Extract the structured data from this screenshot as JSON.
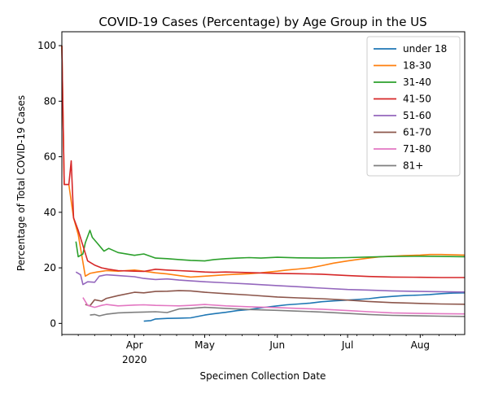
{
  "chart_data": {
    "type": "line",
    "title": "COVID-19 Cases (Percentage) by Age Group in the US",
    "xlabel": "Specimen Collection Date",
    "ylabel": "Percentage of Total COVID-19 Cases",
    "xlim": [
      "2020-03-01",
      "2020-08-20"
    ],
    "ylim": [
      -4,
      105
    ],
    "grid": false,
    "legend_position": "top-right",
    "x_ticks": [
      {
        "date": "2020-04-01",
        "label": "Apr",
        "sublabel": "2020"
      },
      {
        "date": "2020-05-01",
        "label": "May",
        "sublabel": ""
      },
      {
        "date": "2020-06-01",
        "label": "Jun",
        "sublabel": ""
      },
      {
        "date": "2020-07-01",
        "label": "Jul",
        "sublabel": ""
      },
      {
        "date": "2020-08-01",
        "label": "Aug",
        "sublabel": ""
      }
    ],
    "y_ticks": [
      0,
      20,
      40,
      60,
      80,
      100
    ],
    "series": [
      {
        "name": "under 18",
        "color": "#1f77b4",
        "points": [
          [
            "2020-04-05",
            0.8
          ],
          [
            "2020-04-08",
            1.0
          ],
          [
            "2020-04-10",
            1.6
          ],
          [
            "2020-04-15",
            1.8
          ],
          [
            "2020-04-20",
            1.9
          ],
          [
            "2020-04-25",
            2.0
          ],
          [
            "2020-05-01",
            3.0
          ],
          [
            "2020-05-05",
            3.5
          ],
          [
            "2020-05-10",
            4.0
          ],
          [
            "2020-05-15",
            4.6
          ],
          [
            "2020-05-20",
            5.0
          ],
          [
            "2020-05-25",
            5.6
          ],
          [
            "2020-06-01",
            6.3
          ],
          [
            "2020-06-05",
            6.7
          ],
          [
            "2020-06-10",
            7.0
          ],
          [
            "2020-06-15",
            7.3
          ],
          [
            "2020-06-20",
            7.8
          ],
          [
            "2020-06-25",
            8.1
          ],
          [
            "2020-07-01",
            8.4
          ],
          [
            "2020-07-05",
            8.6
          ],
          [
            "2020-07-10",
            8.9
          ],
          [
            "2020-07-15",
            9.4
          ],
          [
            "2020-07-20",
            9.7
          ],
          [
            "2020-07-25",
            10.0
          ],
          [
            "2020-08-01",
            10.2
          ],
          [
            "2020-08-05",
            10.4
          ],
          [
            "2020-08-10",
            10.7
          ],
          [
            "2020-08-15",
            10.9
          ],
          [
            "2020-08-20",
            11.0
          ]
        ]
      },
      {
        "name": "18-30",
        "color": "#ff7f0e",
        "points": [
          [
            "2020-03-01",
            100
          ],
          [
            "2020-03-02",
            50
          ],
          [
            "2020-03-04",
            50
          ],
          [
            "2020-03-06",
            38
          ],
          [
            "2020-03-08",
            32
          ],
          [
            "2020-03-11",
            17
          ],
          [
            "2020-03-13",
            18
          ],
          [
            "2020-03-16",
            18.5
          ],
          [
            "2020-03-20",
            19
          ],
          [
            "2020-03-25",
            18.8
          ],
          [
            "2020-04-01",
            19.2
          ],
          [
            "2020-04-05",
            18.8
          ],
          [
            "2020-04-10",
            18.2
          ],
          [
            "2020-04-15",
            17.8
          ],
          [
            "2020-04-20",
            17.2
          ],
          [
            "2020-04-25",
            16.7
          ],
          [
            "2020-05-01",
            17.0
          ],
          [
            "2020-05-05",
            17.2
          ],
          [
            "2020-05-10",
            17.5
          ],
          [
            "2020-05-15",
            17.7
          ],
          [
            "2020-05-20",
            17.9
          ],
          [
            "2020-05-25",
            18.2
          ],
          [
            "2020-06-01",
            18.8
          ],
          [
            "2020-06-05",
            19.2
          ],
          [
            "2020-06-10",
            19.6
          ],
          [
            "2020-06-15",
            20.0
          ],
          [
            "2020-06-20",
            20.8
          ],
          [
            "2020-06-25",
            21.7
          ],
          [
            "2020-07-01",
            22.5
          ],
          [
            "2020-07-05",
            23.0
          ],
          [
            "2020-07-10",
            23.5
          ],
          [
            "2020-07-15",
            24.0
          ],
          [
            "2020-07-20",
            24.2
          ],
          [
            "2020-07-25",
            24.4
          ],
          [
            "2020-08-01",
            24.6
          ],
          [
            "2020-08-05",
            24.8
          ],
          [
            "2020-08-10",
            24.8
          ],
          [
            "2020-08-15",
            24.7
          ],
          [
            "2020-08-20",
            24.6
          ]
        ]
      },
      {
        "name": "31-40",
        "color": "#2ca02c",
        "points": [
          [
            "2020-03-07",
            29.5
          ],
          [
            "2020-03-08",
            24
          ],
          [
            "2020-03-10",
            25
          ],
          [
            "2020-03-11",
            29
          ],
          [
            "2020-03-13",
            33.5
          ],
          [
            "2020-03-14",
            31
          ],
          [
            "2020-03-16",
            29
          ],
          [
            "2020-03-18",
            27
          ],
          [
            "2020-03-19",
            26
          ],
          [
            "2020-03-21",
            27
          ],
          [
            "2020-03-25",
            25.5
          ],
          [
            "2020-04-01",
            24.5
          ],
          [
            "2020-04-05",
            25
          ],
          [
            "2020-04-10",
            23.5
          ],
          [
            "2020-04-15",
            23.3
          ],
          [
            "2020-04-20",
            23
          ],
          [
            "2020-04-25",
            22.7
          ],
          [
            "2020-05-01",
            22.5
          ],
          [
            "2020-05-05",
            23
          ],
          [
            "2020-05-10",
            23.3
          ],
          [
            "2020-05-15",
            23.5
          ],
          [
            "2020-05-20",
            23.7
          ],
          [
            "2020-05-25",
            23.5
          ],
          [
            "2020-06-01",
            23.8
          ],
          [
            "2020-06-10",
            23.6
          ],
          [
            "2020-06-20",
            23.5
          ],
          [
            "2020-07-01",
            23.7
          ],
          [
            "2020-07-10",
            23.9
          ],
          [
            "2020-07-20",
            24.1
          ],
          [
            "2020-08-01",
            24.2
          ],
          [
            "2020-08-10",
            24.1
          ],
          [
            "2020-08-20",
            24.0
          ]
        ]
      },
      {
        "name": "41-50",
        "color": "#d62728",
        "points": [
          [
            "2020-03-01",
            100
          ],
          [
            "2020-03-02",
            50
          ],
          [
            "2020-03-04",
            50
          ],
          [
            "2020-03-05",
            58.5
          ],
          [
            "2020-03-06",
            38
          ],
          [
            "2020-03-08",
            33.5
          ],
          [
            "2020-03-10",
            28
          ],
          [
            "2020-03-12",
            22.5
          ],
          [
            "2020-03-15",
            21
          ],
          [
            "2020-03-18",
            20
          ],
          [
            "2020-03-21",
            19.5
          ],
          [
            "2020-03-25",
            19
          ],
          [
            "2020-04-01",
            18.8
          ],
          [
            "2020-04-05",
            18.7
          ],
          [
            "2020-04-10",
            19.5
          ],
          [
            "2020-04-15",
            19.2
          ],
          [
            "2020-04-20",
            19
          ],
          [
            "2020-04-25",
            18.8
          ],
          [
            "2020-05-01",
            18.5
          ],
          [
            "2020-05-05",
            18.4
          ],
          [
            "2020-05-10",
            18.5
          ],
          [
            "2020-05-15",
            18.4
          ],
          [
            "2020-05-20",
            18.3
          ],
          [
            "2020-06-01",
            18.0
          ],
          [
            "2020-06-10",
            17.9
          ],
          [
            "2020-06-20",
            17.7
          ],
          [
            "2020-07-01",
            17.2
          ],
          [
            "2020-07-10",
            16.9
          ],
          [
            "2020-07-20",
            16.7
          ],
          [
            "2020-08-01",
            16.6
          ],
          [
            "2020-08-10",
            16.5
          ],
          [
            "2020-08-20",
            16.5
          ]
        ]
      },
      {
        "name": "51-60",
        "color": "#9467bd",
        "points": [
          [
            "2020-03-07",
            18.5
          ],
          [
            "2020-03-09",
            17.5
          ],
          [
            "2020-03-10",
            14
          ],
          [
            "2020-03-12",
            15
          ],
          [
            "2020-03-15",
            14.8
          ],
          [
            "2020-03-17",
            17
          ],
          [
            "2020-03-20",
            17.5
          ],
          [
            "2020-03-25",
            17.2
          ],
          [
            "2020-04-01",
            16.8
          ],
          [
            "2020-04-05",
            16.2
          ],
          [
            "2020-04-10",
            15.8
          ],
          [
            "2020-04-15",
            16.0
          ],
          [
            "2020-04-20",
            15.6
          ],
          [
            "2020-04-25",
            15.3
          ],
          [
            "2020-05-01",
            15.0
          ],
          [
            "2020-05-10",
            14.6
          ],
          [
            "2020-05-20",
            14.2
          ],
          [
            "2020-06-01",
            13.6
          ],
          [
            "2020-06-10",
            13.2
          ],
          [
            "2020-06-20",
            12.7
          ],
          [
            "2020-07-01",
            12.2
          ],
          [
            "2020-07-10",
            12.0
          ],
          [
            "2020-07-20",
            11.7
          ],
          [
            "2020-08-01",
            11.5
          ],
          [
            "2020-08-10",
            11.4
          ],
          [
            "2020-08-20",
            11.3
          ]
        ]
      },
      {
        "name": "61-70",
        "color": "#8c564b",
        "points": [
          [
            "2020-03-11",
            6.8
          ],
          [
            "2020-03-13",
            6.3
          ],
          [
            "2020-03-15",
            8.5
          ],
          [
            "2020-03-18",
            8
          ],
          [
            "2020-03-20",
            9
          ],
          [
            "2020-03-25",
            10
          ],
          [
            "2020-04-01",
            11.2
          ],
          [
            "2020-04-05",
            11
          ],
          [
            "2020-04-10",
            11.5
          ],
          [
            "2020-04-15",
            11.6
          ],
          [
            "2020-04-20",
            11.8
          ],
          [
            "2020-04-25",
            11.7
          ],
          [
            "2020-05-01",
            11.2
          ],
          [
            "2020-05-10",
            10.7
          ],
          [
            "2020-05-20",
            10.2
          ],
          [
            "2020-06-01",
            9.5
          ],
          [
            "2020-06-10",
            9.2
          ],
          [
            "2020-06-20",
            8.9
          ],
          [
            "2020-07-01",
            8.4
          ],
          [
            "2020-07-10",
            7.9
          ],
          [
            "2020-07-20",
            7.5
          ],
          [
            "2020-08-01",
            7.2
          ],
          [
            "2020-08-10",
            7.0
          ],
          [
            "2020-08-20",
            6.9
          ]
        ]
      },
      {
        "name": "71-80",
        "color": "#e377c2",
        "points": [
          [
            "2020-03-10",
            9.3
          ],
          [
            "2020-03-12",
            6.5
          ],
          [
            "2020-03-15",
            5.8
          ],
          [
            "2020-03-18",
            6.5
          ],
          [
            "2020-03-20",
            6.8
          ],
          [
            "2020-03-25",
            6.3
          ],
          [
            "2020-04-01",
            6.6
          ],
          [
            "2020-04-05",
            6.7
          ],
          [
            "2020-04-10",
            6.5
          ],
          [
            "2020-04-15",
            6.4
          ],
          [
            "2020-04-20",
            6.3
          ],
          [
            "2020-04-25",
            6.5
          ],
          [
            "2020-05-01",
            6.8
          ],
          [
            "2020-05-10",
            6.3
          ],
          [
            "2020-05-20",
            6.0
          ],
          [
            "2020-06-01",
            5.7
          ],
          [
            "2020-06-10",
            5.4
          ],
          [
            "2020-06-20",
            5.1
          ],
          [
            "2020-07-01",
            4.6
          ],
          [
            "2020-07-10",
            4.2
          ],
          [
            "2020-07-20",
            3.8
          ],
          [
            "2020-08-01",
            3.6
          ],
          [
            "2020-08-10",
            3.5
          ],
          [
            "2020-08-20",
            3.4
          ]
        ]
      },
      {
        "name": "81+",
        "color": "#7f7f7f",
        "points": [
          [
            "2020-03-13",
            3.0
          ],
          [
            "2020-03-15",
            3.2
          ],
          [
            "2020-03-17",
            2.7
          ],
          [
            "2020-03-20",
            3.3
          ],
          [
            "2020-03-25",
            3.8
          ],
          [
            "2020-04-01",
            4.0
          ],
          [
            "2020-04-05",
            4.1
          ],
          [
            "2020-04-10",
            4.2
          ],
          [
            "2020-04-15",
            3.9
          ],
          [
            "2020-04-20",
            5.2
          ],
          [
            "2020-04-25",
            5.4
          ],
          [
            "2020-05-01",
            5.8
          ],
          [
            "2020-05-10",
            5.4
          ],
          [
            "2020-05-20",
            5.0
          ],
          [
            "2020-06-01",
            4.7
          ],
          [
            "2020-06-10",
            4.4
          ],
          [
            "2020-06-20",
            4.1
          ],
          [
            "2020-07-01",
            3.6
          ],
          [
            "2020-07-10",
            3.2
          ],
          [
            "2020-07-20",
            2.9
          ],
          [
            "2020-08-01",
            2.7
          ],
          [
            "2020-08-10",
            2.6
          ],
          [
            "2020-08-20",
            2.5
          ]
        ]
      }
    ]
  }
}
